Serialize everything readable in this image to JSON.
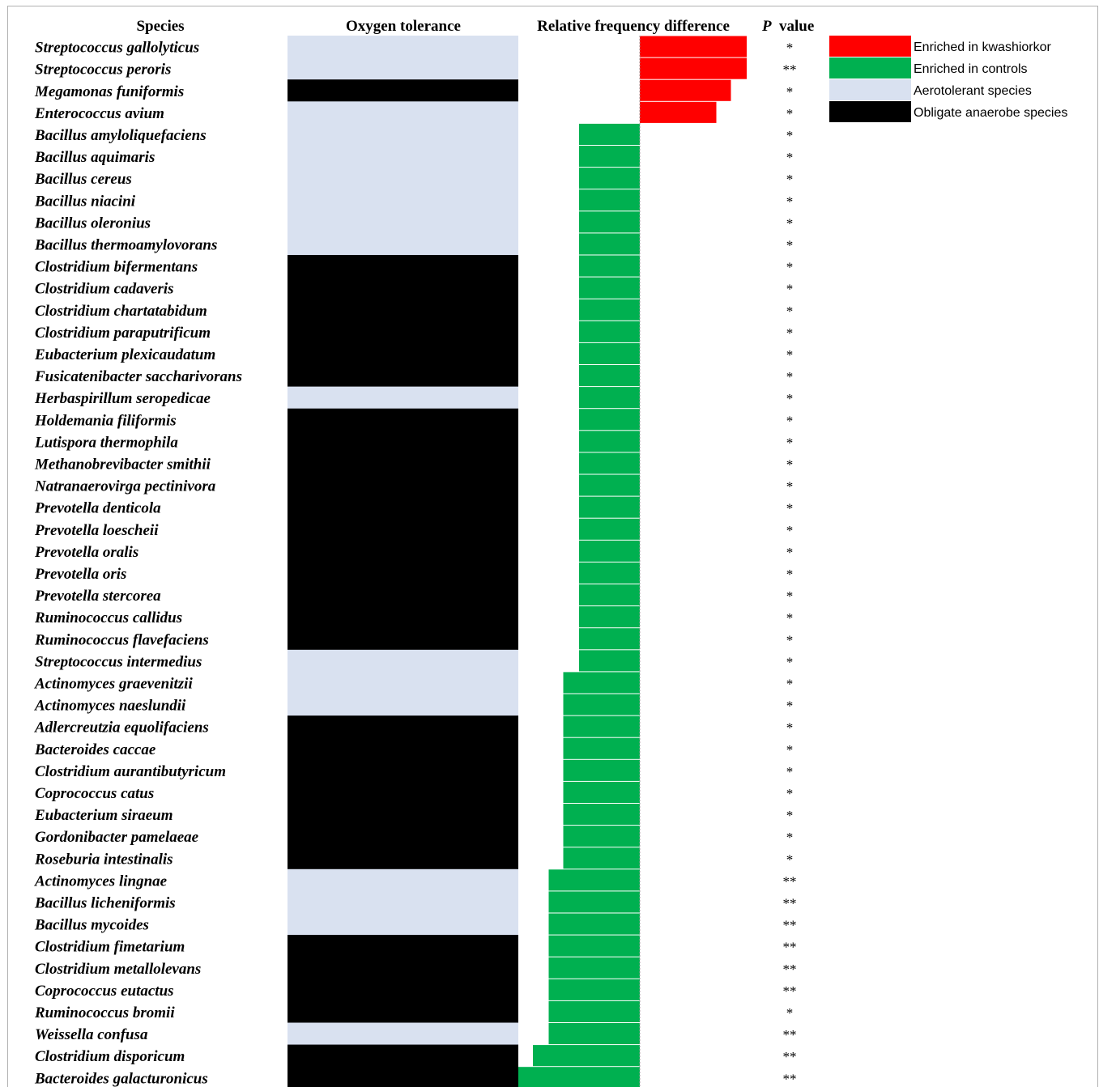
{
  "chart_data": {
    "type": "bar",
    "headers": {
      "species": "Species",
      "oxygen": "Oxygen tolerance",
      "rfd": "Relative frequency difference",
      "p_italic": "P",
      "p_rest": "value"
    },
    "legend": [
      {
        "label": "Enriched in kwashiorkor",
        "color": "#ff0000"
      },
      {
        "label": "Enriched in controls",
        "color": "#00b050"
      },
      {
        "label": "Aerotolerant species",
        "color": "#d9e1f0"
      },
      {
        "label": "Obligate anaerobe species",
        "color": "#000000"
      }
    ],
    "colors": {
      "kwashiorkor": "#ff0000",
      "controls": "#00b050",
      "aerotolerant": "#d9e1f0",
      "anaerobe": "#000000"
    },
    "categories": [
      "Streptococcus gallolyticus",
      "Streptococcus peroris",
      "Megamonas funiformis",
      "Enterococcus avium",
      "Bacillus amyloliquefaciens",
      "Bacillus aquimaris",
      "Bacillus cereus",
      "Bacillus niacini",
      "Bacillus oleronius",
      "Bacillus thermoamylovorans",
      "Clostridium bifermentans",
      "Clostridium cadaveris",
      "Clostridium chartatabidum",
      "Clostridium paraputrificum",
      "Eubacterium plexicaudatum",
      "Fusicatenibacter saccharivorans",
      "Herbaspirillum seropedicae",
      "Holdemania filiformis",
      "Lutispora thermophila",
      "Methanobrevibacter smithii",
      "Natranaerovirga pectinivora",
      "Prevotella denticola",
      "Prevotella loescheii",
      "Prevotella oralis",
      "Prevotella oris",
      "Prevotella stercorea",
      "Ruminococcus callidus",
      "Ruminococcus flavefaciens",
      "Streptococcus intermedius",
      "Actinomyces graevenitzii",
      "Actinomyces naeslundii",
      "Adlercreutzia equolifaciens",
      "Bacteroides caccae",
      "Clostridium aurantibutyricum",
      "Coprococcus catus",
      "Eubacterium siraeum",
      "Gordonibacter pamelaeae",
      "Roseburia intestinalis",
      "Actinomyces lingnae",
      "Bacillus licheniformis",
      "Bacillus mycoides",
      "Clostridium fimetarium",
      "Clostridium metallolevans",
      "Coprococcus eutactus",
      "Ruminococcus bromii",
      "Weissella confusa",
      "Clostridium disporicum",
      "Bacteroides galacturonicus"
    ],
    "oxygen_tolerance": [
      "aerotolerant",
      "aerotolerant",
      "anaerobe",
      "aerotolerant",
      "aerotolerant",
      "aerotolerant",
      "aerotolerant",
      "aerotolerant",
      "aerotolerant",
      "aerotolerant",
      "anaerobe",
      "anaerobe",
      "anaerobe",
      "anaerobe",
      "anaerobe",
      "anaerobe",
      "aerotolerant",
      "anaerobe",
      "anaerobe",
      "anaerobe",
      "anaerobe",
      "anaerobe",
      "anaerobe",
      "anaerobe",
      "anaerobe",
      "anaerobe",
      "anaerobe",
      "anaerobe",
      "aerotolerant",
      "aerotolerant",
      "aerotolerant",
      "anaerobe",
      "anaerobe",
      "anaerobe",
      "anaerobe",
      "anaerobe",
      "anaerobe",
      "anaerobe",
      "aerotolerant",
      "aerotolerant",
      "aerotolerant",
      "anaerobe",
      "anaerobe",
      "anaerobe",
      "anaerobe",
      "aerotolerant",
      "anaerobe",
      "anaerobe"
    ],
    "values": [
      0.88,
      0.88,
      0.75,
      0.63,
      -0.5,
      -0.5,
      -0.5,
      -0.5,
      -0.5,
      -0.5,
      -0.5,
      -0.5,
      -0.5,
      -0.5,
      -0.5,
      -0.5,
      -0.5,
      -0.5,
      -0.5,
      -0.5,
      -0.5,
      -0.5,
      -0.5,
      -0.5,
      -0.5,
      -0.5,
      -0.5,
      -0.5,
      -0.5,
      -0.63,
      -0.63,
      -0.63,
      -0.63,
      -0.63,
      -0.63,
      -0.63,
      -0.63,
      -0.63,
      -0.75,
      -0.75,
      -0.75,
      -0.75,
      -0.75,
      -0.75,
      -0.75,
      -0.75,
      -0.88,
      -1.0
    ],
    "p_values": [
      "*",
      "**",
      "*",
      "*",
      "*",
      "*",
      "*",
      "*",
      "*",
      "*",
      "*",
      "*",
      "*",
      "*",
      "*",
      "*",
      "*",
      "*",
      "*",
      "*",
      "*",
      "*",
      "*",
      "*",
      "*",
      "*",
      "*",
      "*",
      "*",
      "*",
      "*",
      "*",
      "*",
      "*",
      "*",
      "*",
      "*",
      "*",
      "**",
      "**",
      "**",
      "**",
      "**",
      "**",
      "*",
      "**",
      "**",
      "**"
    ],
    "xlim": [
      -1.0,
      0.88
    ]
  }
}
